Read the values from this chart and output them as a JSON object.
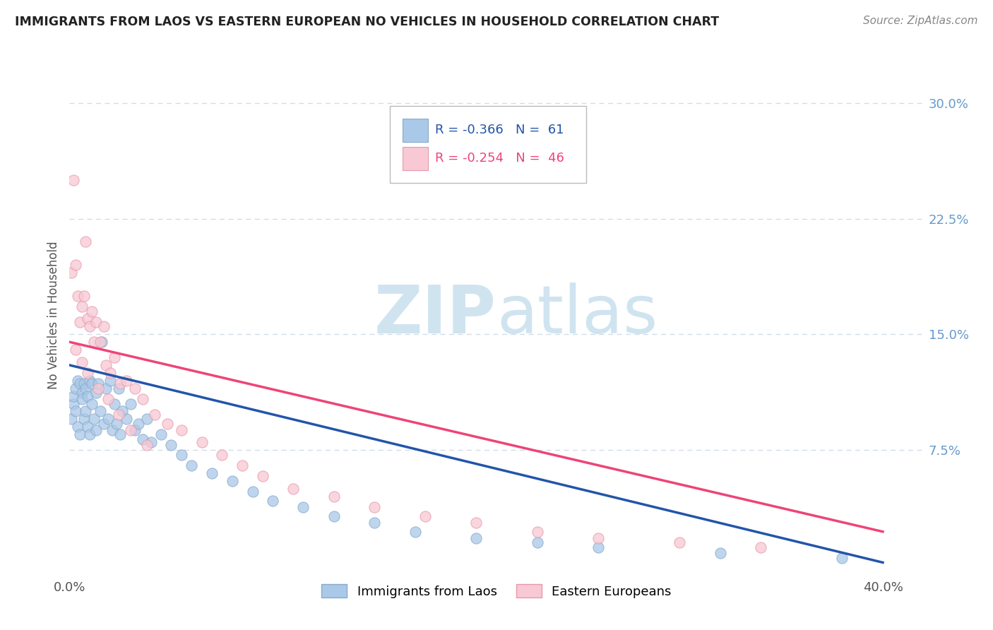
{
  "title": "IMMIGRANTS FROM LAOS VS EASTERN EUROPEAN NO VEHICLES IN HOUSEHOLD CORRELATION CHART",
  "source": "Source: ZipAtlas.com",
  "ylabel": "No Vehicles in Household",
  "xlim": [
    0.0,
    0.42
  ],
  "ylim": [
    -0.005,
    0.33
  ],
  "blue_color": "#aac8e8",
  "blue_edge_color": "#88aacc",
  "pink_color": "#f8c8d4",
  "pink_edge_color": "#e899aa",
  "blue_line_color": "#2255aa",
  "pink_line_color": "#ee4477",
  "watermark_color": "#d0e4f0",
  "grid_color": "#d0dde8",
  "right_tick_color": "#6699cc",
  "blue_line_x0": 0.0,
  "blue_line_y0": 0.13,
  "blue_line_x1": 0.4,
  "blue_line_y1": 0.002,
  "pink_line_x0": 0.0,
  "pink_line_y0": 0.145,
  "pink_line_x1": 0.4,
  "pink_line_y1": 0.022,
  "blue_scatter_x": [
    0.001,
    0.002,
    0.002,
    0.003,
    0.003,
    0.004,
    0.004,
    0.005,
    0.005,
    0.006,
    0.006,
    0.007,
    0.007,
    0.008,
    0.008,
    0.009,
    0.009,
    0.01,
    0.01,
    0.011,
    0.011,
    0.012,
    0.013,
    0.013,
    0.014,
    0.015,
    0.016,
    0.017,
    0.018,
    0.019,
    0.02,
    0.021,
    0.022,
    0.023,
    0.024,
    0.025,
    0.026,
    0.028,
    0.03,
    0.032,
    0.034,
    0.036,
    0.038,
    0.04,
    0.045,
    0.05,
    0.055,
    0.06,
    0.07,
    0.08,
    0.09,
    0.1,
    0.115,
    0.13,
    0.15,
    0.17,
    0.2,
    0.23,
    0.26,
    0.32,
    0.38
  ],
  "blue_scatter_y": [
    0.095,
    0.105,
    0.11,
    0.1,
    0.115,
    0.09,
    0.12,
    0.085,
    0.118,
    0.112,
    0.108,
    0.095,
    0.118,
    0.1,
    0.115,
    0.09,
    0.11,
    0.12,
    0.085,
    0.118,
    0.105,
    0.095,
    0.112,
    0.088,
    0.118,
    0.1,
    0.145,
    0.092,
    0.115,
    0.095,
    0.12,
    0.088,
    0.105,
    0.092,
    0.115,
    0.085,
    0.1,
    0.095,
    0.105,
    0.088,
    0.092,
    0.082,
    0.095,
    0.08,
    0.085,
    0.078,
    0.072,
    0.065,
    0.06,
    0.055,
    0.048,
    0.042,
    0.038,
    0.032,
    0.028,
    0.022,
    0.018,
    0.015,
    0.012,
    0.008,
    0.005
  ],
  "pink_scatter_x": [
    0.001,
    0.002,
    0.003,
    0.004,
    0.005,
    0.006,
    0.007,
    0.008,
    0.009,
    0.01,
    0.011,
    0.012,
    0.013,
    0.015,
    0.017,
    0.018,
    0.02,
    0.022,
    0.025,
    0.028,
    0.032,
    0.036,
    0.042,
    0.048,
    0.055,
    0.065,
    0.075,
    0.085,
    0.095,
    0.11,
    0.13,
    0.15,
    0.175,
    0.2,
    0.23,
    0.26,
    0.3,
    0.34,
    0.003,
    0.006,
    0.009,
    0.014,
    0.019,
    0.024,
    0.03,
    0.038
  ],
  "pink_scatter_y": [
    0.19,
    0.25,
    0.195,
    0.175,
    0.158,
    0.168,
    0.175,
    0.21,
    0.16,
    0.155,
    0.165,
    0.145,
    0.158,
    0.145,
    0.155,
    0.13,
    0.125,
    0.135,
    0.118,
    0.12,
    0.115,
    0.108,
    0.098,
    0.092,
    0.088,
    0.08,
    0.072,
    0.065,
    0.058,
    0.05,
    0.045,
    0.038,
    0.032,
    0.028,
    0.022,
    0.018,
    0.015,
    0.012,
    0.14,
    0.132,
    0.125,
    0.115,
    0.108,
    0.098,
    0.088,
    0.078
  ]
}
